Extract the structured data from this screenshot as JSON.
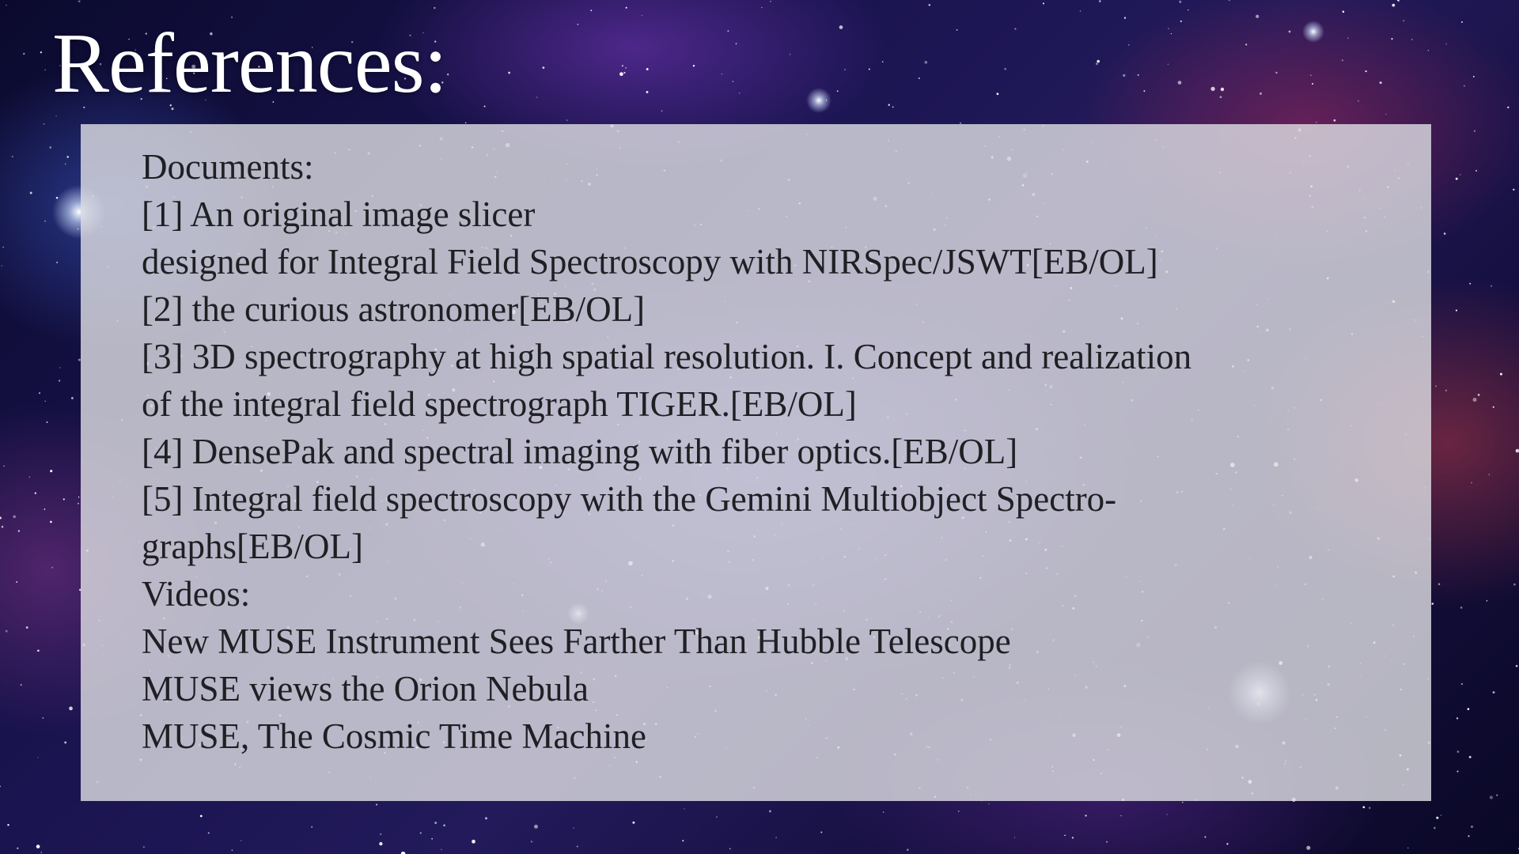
{
  "slide": {
    "title": "References:",
    "background": {
      "description_colors": [
        "#0b0a2e",
        "#221a5a",
        "#a0285a",
        "#3c5ac8"
      ]
    }
  },
  "content": {
    "lines": [
      "Documents:",
      "[1] An original image slicer",
      "designed for Integral Field Spectroscopy with NIRSpec/JSWT[EB/OL]",
      "[2] the curious astronomer[EB/OL]",
      "[3] 3D spectrography at high spatial resolution. I. Concept and realization",
      "of the integral field spectrograph TIGER.[EB/OL]",
      "[4] DensePak and spectral imaging with fiber optics.[EB/OL]",
      "[5] Integral field spectroscopy with the Gemini Multiobject Spectro-",
      "graphs[EB/OL]",
      "Videos:",
      "New MUSE Instrument Sees Farther Than Hubble Telescope",
      "MUSE views the Orion Nebula",
      "MUSE, The Cosmic Time Machine"
    ]
  },
  "colors": {
    "panel_bg": "#dcdce2",
    "text": "#1f1f24",
    "title": "#ffffff"
  }
}
